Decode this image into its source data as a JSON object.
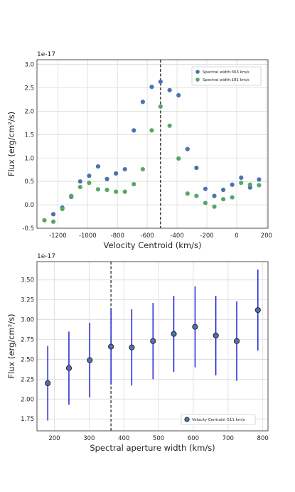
{
  "chart_data": [
    {
      "type": "scatter",
      "scale_exponent": "1e-17",
      "xlabel": "Velocity Centroid (km/s)",
      "ylabel": "Flux (erg/cm²/s)",
      "xlim": [
        -1340,
        210
      ],
      "ylim": [
        -0.5,
        3.1
      ],
      "xticks": [
        -1200,
        -1000,
        -800,
        -600,
        -400,
        -200,
        0,
        200
      ],
      "yticks": [
        -0.5,
        0.0,
        0.5,
        1.0,
        1.5,
        2.0,
        2.5,
        3.0
      ],
      "ytick_labels": [
        "-0.5",
        "0.0",
        "0.5",
        "1.0",
        "1.5",
        "2.0",
        "2.5",
        "3.0"
      ],
      "grid": true,
      "legend_position": "top-right",
      "vline": -511,
      "series": [
        {
          "name": "Spectral width:363 km/s",
          "color": "#4c72b0",
          "x": [
            -1230,
            -1170,
            -1110,
            -1050,
            -990,
            -930,
            -870,
            -810,
            -750,
            -690,
            -630,
            -570,
            -511,
            -450,
            -390,
            -330,
            -270,
            -210,
            -150,
            -90,
            -30,
            30,
            90,
            150
          ],
          "y": [
            -0.2,
            -0.06,
            0.17,
            0.5,
            0.62,
            0.82,
            0.55,
            0.67,
            0.76,
            1.59,
            2.2,
            2.52,
            2.63,
            2.45,
            2.34,
            1.19,
            0.79,
            0.34,
            0.19,
            0.32,
            0.43,
            0.58,
            0.37,
            0.54
          ]
        },
        {
          "name": "Spectral width:181 km/s",
          "color": "#55a868",
          "x": [
            -1290,
            -1230,
            -1170,
            -1110,
            -1050,
            -990,
            -930,
            -870,
            -810,
            -750,
            -690,
            -630,
            -570,
            -511,
            -450,
            -390,
            -330,
            -270,
            -210,
            -150,
            -90,
            -30,
            30,
            90,
            150
          ],
          "y": [
            -0.33,
            -0.36,
            -0.09,
            0.19,
            0.38,
            0.47,
            0.33,
            0.32,
            0.28,
            0.28,
            0.44,
            0.76,
            1.59,
            2.1,
            1.69,
            0.99,
            0.24,
            0.19,
            0.04,
            -0.04,
            0.12,
            0.16,
            0.47,
            0.43,
            0.42
          ]
        }
      ]
    },
    {
      "type": "scatter",
      "scale_exponent": "1e-17",
      "xlabel": "Spectral aperture width (km/s)",
      "ylabel": "Flux (erg/cm²/s)",
      "xlim": [
        150,
        815
      ],
      "ylim": [
        1.6,
        3.73
      ],
      "xticks": [
        200,
        300,
        400,
        500,
        600,
        700,
        800
      ],
      "yticks": [
        1.75,
        2.0,
        2.25,
        2.5,
        2.75,
        3.0,
        3.25,
        3.5
      ],
      "ytick_labels": [
        "1.75",
        "2.00",
        "2.25",
        "2.50",
        "2.75",
        "3.00",
        "3.25",
        "3.50"
      ],
      "grid": true,
      "legend_position": "bottom-right",
      "vline": 363,
      "series": [
        {
          "name": "Velocity Centroid:-511 km/s",
          "color": "#4c72b0",
          "error_color": "#0000cc",
          "x": [
            181,
            242,
            302,
            363,
            423,
            484,
            544,
            605,
            665,
            725,
            786
          ],
          "y": [
            2.2,
            2.39,
            2.49,
            2.66,
            2.65,
            2.73,
            2.82,
            2.91,
            2.8,
            2.73,
            3.12
          ],
          "yerr": [
            0.47,
            0.46,
            0.47,
            0.47,
            0.48,
            0.48,
            0.48,
            0.51,
            0.5,
            0.5,
            0.51
          ]
        }
      ]
    }
  ]
}
